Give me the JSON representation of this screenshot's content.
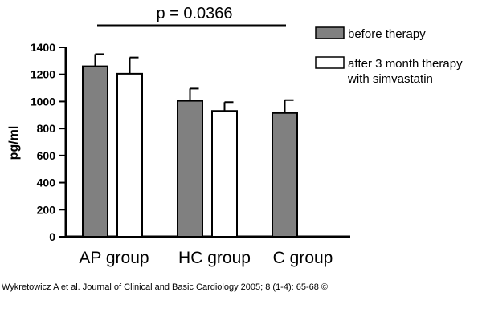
{
  "chart_data": {
    "type": "bar",
    "ylabel": "pg/ml",
    "ylim": [
      0,
      1400
    ],
    "yticks": [
      0,
      200,
      400,
      600,
      800,
      1000,
      1200,
      1400
    ],
    "categories": [
      "AP group",
      "HC group",
      "C group"
    ],
    "series": [
      {
        "name": "before therapy",
        "color": "#808080",
        "values": [
          1260,
          1005,
          915
        ],
        "errors": [
          90,
          90,
          95
        ]
      },
      {
        "name": "after 3 month therapy with simvastatin",
        "color": "#ffffff",
        "values": [
          1205,
          930,
          null
        ],
        "errors": [
          120,
          65,
          null
        ]
      }
    ],
    "annotation": {
      "text": "p = 0.0366"
    },
    "legend": {
      "position": "top-right",
      "items": [
        {
          "lines": [
            "before therapy"
          ]
        },
        {
          "lines": [
            "after 3 month therapy",
            "with simvastatin"
          ]
        }
      ]
    }
  },
  "caption": "Wykretowicz A et al. Journal of Clinical and Basic Cardiology 2005; 8 (1-4): 65-68 ©"
}
